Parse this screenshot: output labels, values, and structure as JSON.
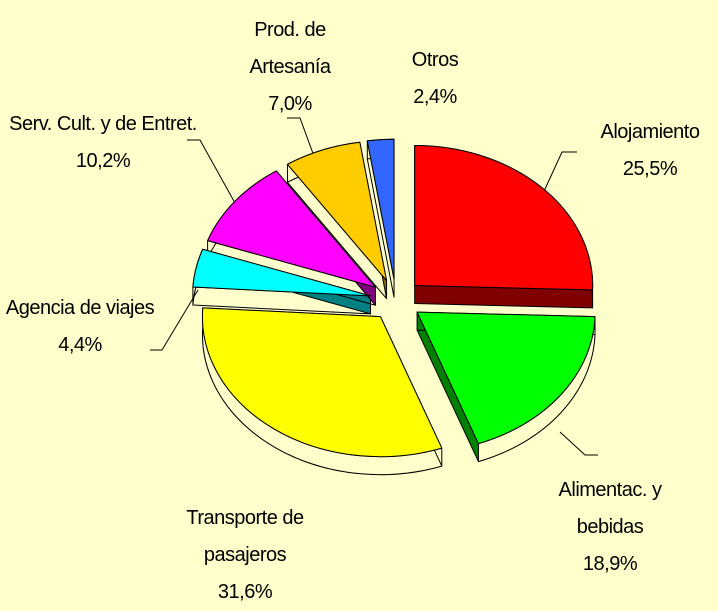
{
  "chart_data": {
    "type": "pie3d",
    "categories": [
      "Alojamiento",
      "Alimentac. y bebidas",
      "Transporte de pasajeros",
      "Agencia de viajes",
      "Serv. Cult. y de Entret.",
      "Prod. de Artesanía",
      "Otros"
    ],
    "values": [
      25.5,
      18.9,
      31.6,
      4.4,
      10.2,
      7.0,
      2.4
    ],
    "value_labels": [
      "25,5%",
      "18,9%",
      "31,6%",
      "4,4%",
      "10,2%",
      "7,0%",
      "2,4%"
    ],
    "colors": [
      "#FF0000",
      "#00FF00",
      "#FFFF00",
      "#00FFFF",
      "#FF00FF",
      "#FFCC00",
      "#3366FF"
    ]
  }
}
